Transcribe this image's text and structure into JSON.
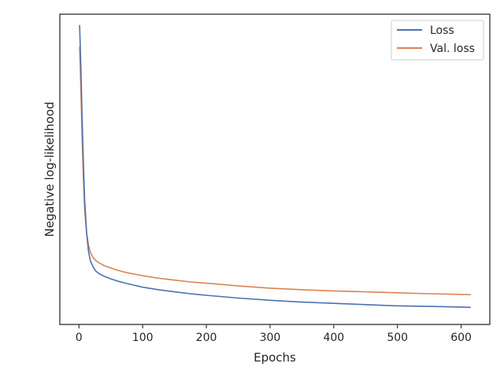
{
  "chart_data": {
    "type": "line",
    "title": "",
    "xlabel": "Epochs",
    "ylabel": "Negative log-likelihood",
    "xlim": [
      -30,
      645
    ],
    "ylim": [
      0.0,
      1.0
    ],
    "x_ticks": [
      0,
      100,
      200,
      300,
      400,
      500,
      600
    ],
    "y_ticks_shown": false,
    "grid": false,
    "legend": "top-right",
    "series": [
      {
        "name": "Loss",
        "color": "#4c72b0",
        "x": [
          1,
          3,
          5,
          7,
          9,
          12,
          15,
          18,
          22,
          26,
          30,
          35,
          40,
          50,
          60,
          75,
          100,
          125,
          150,
          175,
          200,
          250,
          300,
          350,
          400,
          450,
          500,
          550,
          600,
          615
        ],
        "y": [
          0.965,
          0.83,
          0.66,
          0.52,
          0.4,
          0.295,
          0.235,
          0.205,
          0.186,
          0.173,
          0.166,
          0.16,
          0.155,
          0.147,
          0.14,
          0.132,
          0.12,
          0.112,
          0.105,
          0.099,
          0.094,
          0.085,
          0.078,
          0.072,
          0.068,
          0.064,
          0.06,
          0.058,
          0.056,
          0.055
        ]
      },
      {
        "name": "Val. loss",
        "color": "#dd8452",
        "x": [
          1,
          3,
          5,
          7,
          9,
          12,
          15,
          18,
          22,
          26,
          30,
          35,
          40,
          50,
          60,
          75,
          100,
          125,
          150,
          175,
          200,
          250,
          300,
          350,
          400,
          450,
          500,
          550,
          600,
          615
        ],
        "y": [
          0.895,
          0.76,
          0.6,
          0.47,
          0.37,
          0.295,
          0.255,
          0.232,
          0.216,
          0.207,
          0.2,
          0.195,
          0.189,
          0.182,
          0.175,
          0.167,
          0.157,
          0.149,
          0.143,
          0.137,
          0.133,
          0.124,
          0.117,
          0.112,
          0.108,
          0.105,
          0.102,
          0.099,
          0.097,
          0.096
        ]
      }
    ]
  }
}
